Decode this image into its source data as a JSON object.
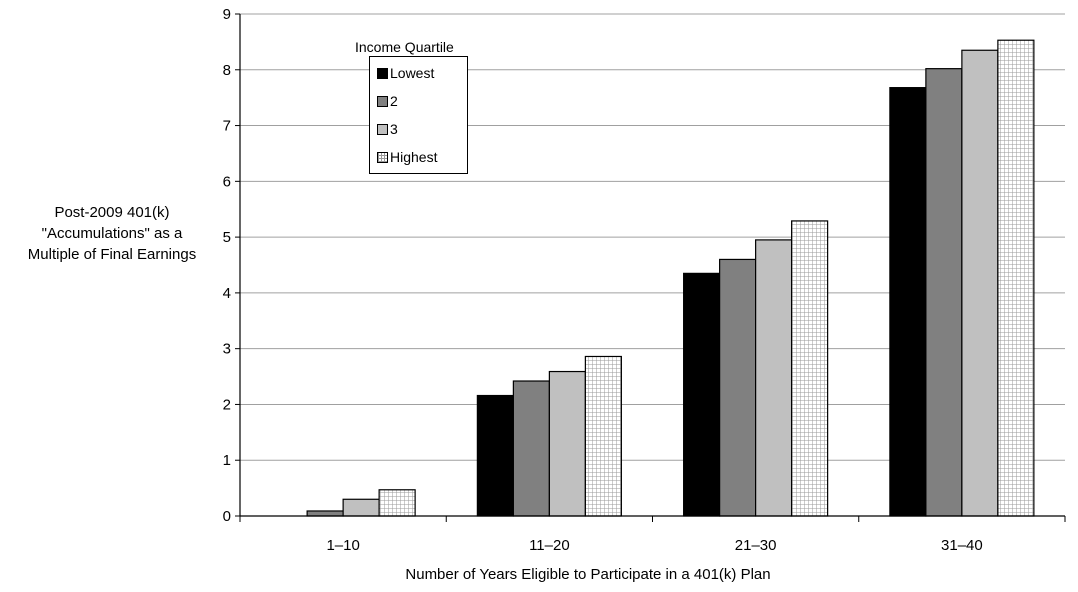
{
  "chart_data": {
    "type": "bar",
    "title": "",
    "xlabel": "Number of Years Eligible to Participate in a 401(k) Plan",
    "ylabel": [
      "Post-2009 401(k)",
      "\"Accumulations\" as a",
      "Multiple of Final Earnings"
    ],
    "categories": [
      "1–10",
      "11–20",
      "21–30",
      "31–40"
    ],
    "ylim": [
      0,
      9
    ],
    "yticks": [
      0,
      1,
      2,
      3,
      4,
      5,
      6,
      7,
      8,
      9
    ],
    "grid": true,
    "legend": {
      "title": "Income Quartile",
      "placement": "top-left"
    },
    "series": [
      {
        "name": "Lowest",
        "values": [
          0.0,
          2.16,
          4.35,
          7.68
        ],
        "color": "#000000",
        "pattern": "solid"
      },
      {
        "name": "2",
        "values": [
          0.09,
          2.42,
          4.6,
          8.02
        ],
        "color": "#808080",
        "pattern": "solid"
      },
      {
        "name": "3",
        "values": [
          0.3,
          2.59,
          4.95,
          8.35
        ],
        "color": "#c0c0c0",
        "pattern": "solid"
      },
      {
        "name": "Highest",
        "values": [
          0.47,
          2.86,
          5.29,
          8.53
        ],
        "color": "#ffffff",
        "pattern": "grid"
      }
    ]
  }
}
